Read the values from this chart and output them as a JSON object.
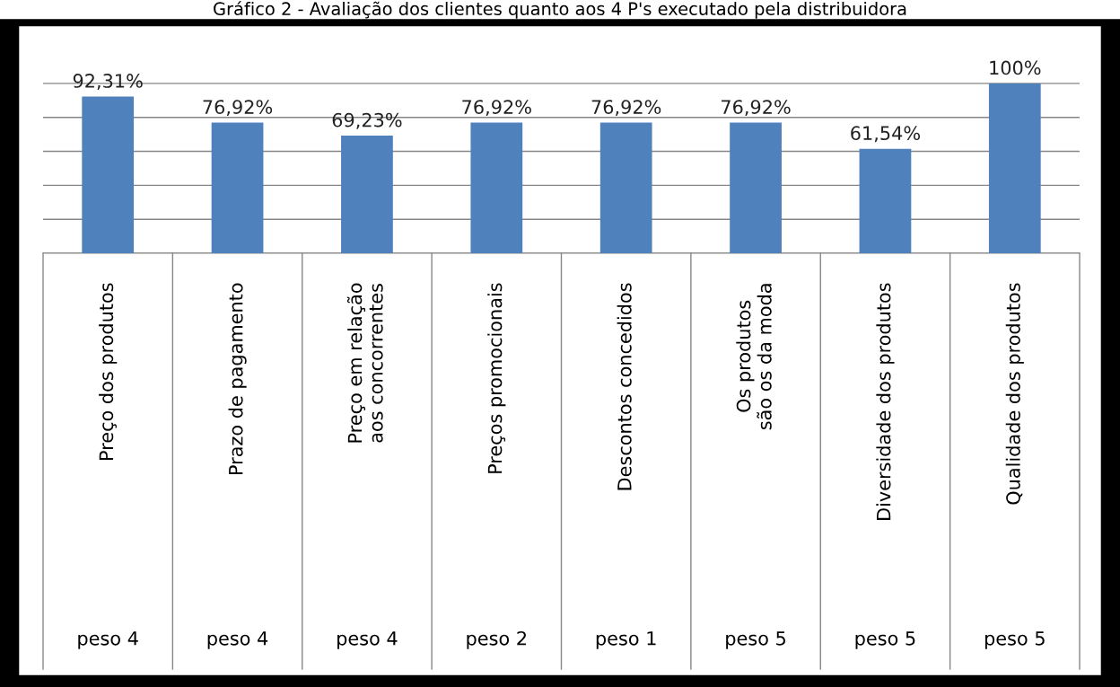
{
  "chart_data": {
    "type": "bar",
    "title": "Gráfico 2 - Avaliação dos clientes quanto aos 4 P's executado pela distribuidora",
    "categories": [
      "Preço dos produtos\npeso 4",
      "Prazo de pagamento\npeso 4",
      "Preço em relação aos concorrentes\npeso 4",
      "Preços promocionais\npeso 2",
      "Descontos concedidos\npeso 1",
      "Os produtos são os da moda\npeso 5",
      "Diversidade dos produtos\npeso 5",
      "Qualidade dos produtos\npeso 5"
    ],
    "values": [
      92.31,
      76.92,
      69.23,
      76.92,
      76.92,
      76.92,
      61.54,
      100
    ],
    "value_labels": [
      "92,31%",
      "76,92%",
      "69,23%",
      "76,92%",
      "76,92%",
      "76,92%",
      "61,54%",
      "100%"
    ],
    "color": "#4f81bd",
    "yticks": [
      {
        "value": 0,
        "label": null
      },
      {
        "value": 20,
        "label": null
      },
      {
        "value": 40,
        "label": null
      },
      {
        "value": 60,
        "label": null
      },
      {
        "value": 80,
        "label": null
      },
      {
        "value": 100,
        "label": null
      }
    ],
    "grid": "y"
  }
}
